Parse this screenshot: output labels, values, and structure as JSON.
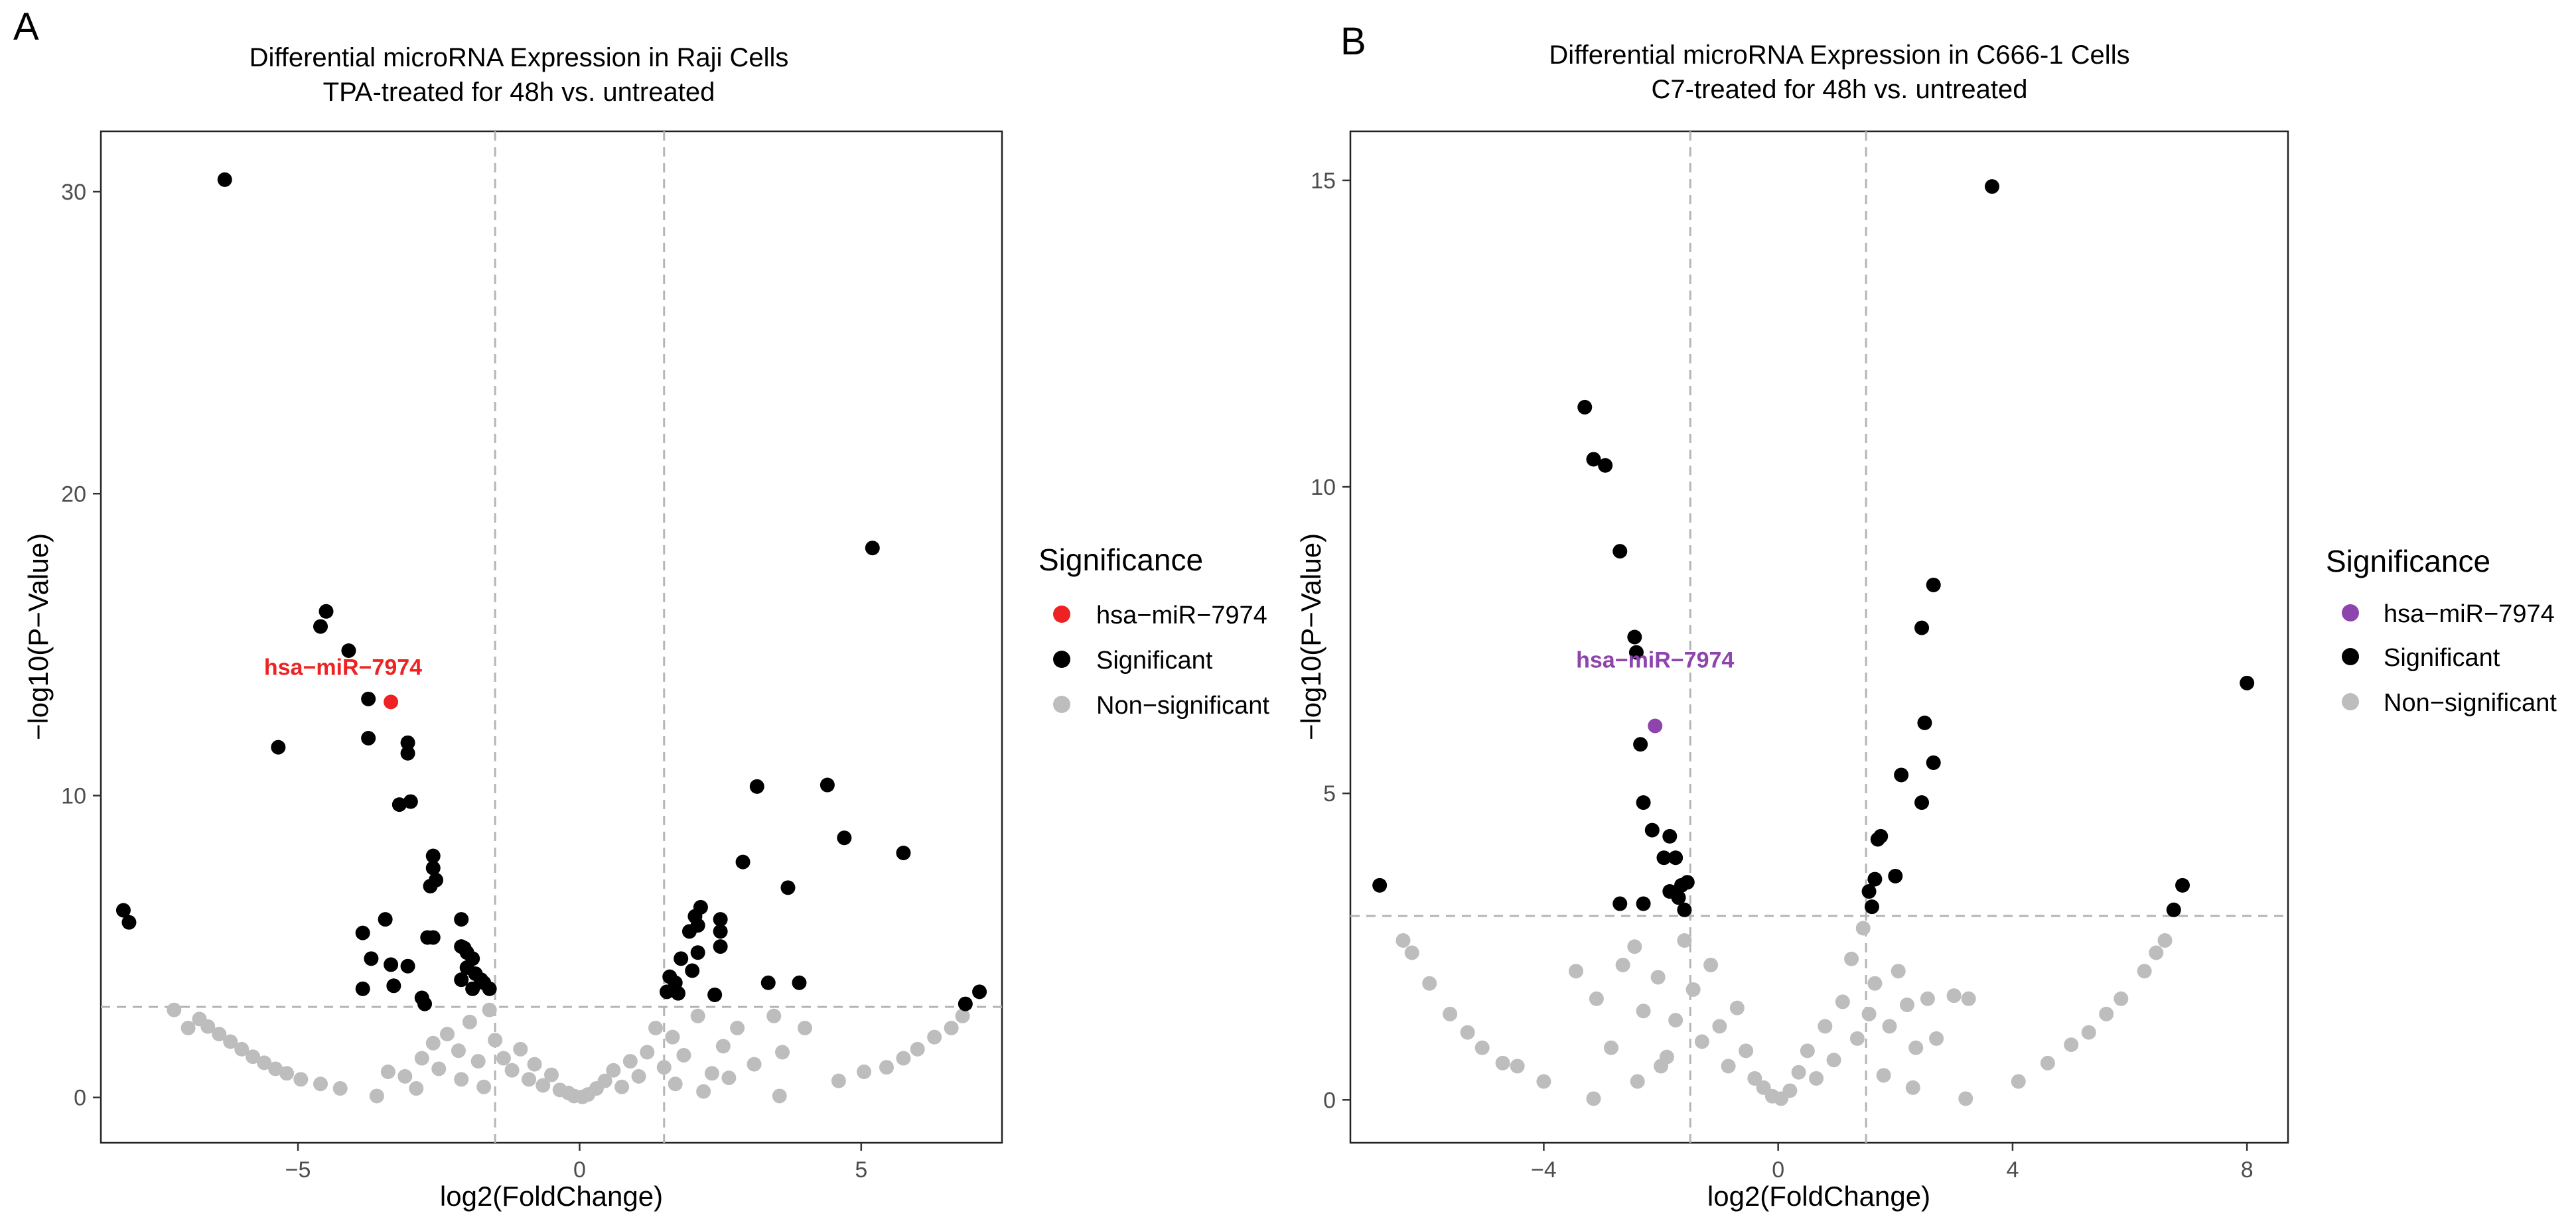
{
  "chart_data": [
    {
      "panel_label": "A",
      "type": "scatter",
      "title": "Differential microRNA Expression in Raji Cells",
      "subtitle": "TPA-treated for 48h vs. untreated",
      "xlabel": "log2(FoldChange)",
      "ylabel": "−log10(P−Value)",
      "xlim": [
        -8.5,
        7.5
      ],
      "ylim": [
        -1.5,
        32.0
      ],
      "xticks": [
        -5,
        0,
        5
      ],
      "yticks": [
        0,
        10,
        20,
        30
      ],
      "xtick_labels": [
        "−5",
        "0",
        "5"
      ],
      "ytick_labels": [
        "0",
        "10",
        "20",
        "30"
      ],
      "x_thresholds": [
        -1.5,
        1.5
      ],
      "y_threshold": 3.0,
      "grid": false,
      "legend": {
        "title": "Significance",
        "position": "right",
        "entries": [
          {
            "label": "hsa−miR−7974",
            "color": "#ee2222"
          },
          {
            "label": "Significant",
            "color": "#000000"
          },
          {
            "label": "Non−significant",
            "color": "#bdbdbd"
          }
        ]
      },
      "annotation": {
        "text": "hsa−miR−7974",
        "x": -4.2,
        "y": 14.0,
        "color": "#ee2222"
      },
      "highlight": [
        {
          "x": -3.35,
          "y": 13.1
        }
      ],
      "significant": [
        {
          "x": -6.3,
          "y": 30.4
        },
        {
          "x": 5.2,
          "y": 18.2
        },
        {
          "x": -4.5,
          "y": 16.1
        },
        {
          "x": -4.6,
          "y": 15.6
        },
        {
          "x": -4.1,
          "y": 14.8
        },
        {
          "x": -3.75,
          "y": 13.2
        },
        {
          "x": -3.75,
          "y": 11.9
        },
        {
          "x": -3.05,
          "y": 11.75
        },
        {
          "x": -3.05,
          "y": 11.4
        },
        {
          "x": -5.35,
          "y": 11.6
        },
        {
          "x": -3.2,
          "y": 9.7
        },
        {
          "x": -3.0,
          "y": 9.8
        },
        {
          "x": -2.6,
          "y": 8.0
        },
        {
          "x": -2.6,
          "y": 7.6
        },
        {
          "x": -2.65,
          "y": 7.0
        },
        {
          "x": -2.55,
          "y": 7.2
        },
        {
          "x": -8.1,
          "y": 6.2
        },
        {
          "x": -8.0,
          "y": 5.8
        },
        {
          "x": -3.45,
          "y": 5.9
        },
        {
          "x": -3.85,
          "y": 5.45
        },
        {
          "x": -2.7,
          "y": 5.3
        },
        {
          "x": -2.6,
          "y": 5.3
        },
        {
          "x": -2.1,
          "y": 5.9
        },
        {
          "x": -3.7,
          "y": 4.6
        },
        {
          "x": -3.35,
          "y": 4.4
        },
        {
          "x": -3.05,
          "y": 4.35
        },
        {
          "x": -3.85,
          "y": 3.6
        },
        {
          "x": -3.3,
          "y": 3.7
        },
        {
          "x": -2.8,
          "y": 3.3
        },
        {
          "x": -2.75,
          "y": 3.1
        },
        {
          "x": -2.1,
          "y": 5.0
        },
        {
          "x": -2.0,
          "y": 4.8
        },
        {
          "x": -1.9,
          "y": 4.6
        },
        {
          "x": -2.0,
          "y": 4.3
        },
        {
          "x": -1.85,
          "y": 4.1
        },
        {
          "x": -2.1,
          "y": 3.9
        },
        {
          "x": -1.7,
          "y": 3.8
        },
        {
          "x": -1.9,
          "y": 3.6
        },
        {
          "x": -1.6,
          "y": 3.6
        },
        {
          "x": -1.75,
          "y": 3.9
        },
        {
          "x": -2.05,
          "y": 4.95
        },
        {
          "x": 3.15,
          "y": 10.3
        },
        {
          "x": 4.4,
          "y": 10.35
        },
        {
          "x": 4.7,
          "y": 8.6
        },
        {
          "x": 5.75,
          "y": 8.1
        },
        {
          "x": 2.9,
          "y": 7.8
        },
        {
          "x": 3.7,
          "y": 6.95
        },
        {
          "x": 2.15,
          "y": 6.3
        },
        {
          "x": 2.05,
          "y": 6.0
        },
        {
          "x": 2.1,
          "y": 5.7
        },
        {
          "x": 1.95,
          "y": 5.5
        },
        {
          "x": 2.5,
          "y": 5.9
        },
        {
          "x": 2.5,
          "y": 5.5
        },
        {
          "x": 2.5,
          "y": 5.0
        },
        {
          "x": 2.1,
          "y": 4.8
        },
        {
          "x": 1.8,
          "y": 4.6
        },
        {
          "x": 2.0,
          "y": 4.2
        },
        {
          "x": 1.6,
          "y": 4.0
        },
        {
          "x": 1.7,
          "y": 3.8
        },
        {
          "x": 1.55,
          "y": 3.5
        },
        {
          "x": 1.75,
          "y": 3.45
        },
        {
          "x": 3.35,
          "y": 3.8
        },
        {
          "x": 3.9,
          "y": 3.8
        },
        {
          "x": 2.4,
          "y": 3.4
        },
        {
          "x": 6.85,
          "y": 3.1
        },
        {
          "x": 7.1,
          "y": 3.5
        }
      ],
      "non_significant": [
        {
          "x": -7.2,
          "y": 2.9
        },
        {
          "x": -6.95,
          "y": 2.3
        },
        {
          "x": -6.75,
          "y": 2.6
        },
        {
          "x": -6.6,
          "y": 2.35
        },
        {
          "x": -6.4,
          "y": 2.1
        },
        {
          "x": -6.2,
          "y": 1.85
        },
        {
          "x": -6.0,
          "y": 1.6
        },
        {
          "x": -5.8,
          "y": 1.35
        },
        {
          "x": -5.6,
          "y": 1.15
        },
        {
          "x": -5.4,
          "y": 0.95
        },
        {
          "x": -5.2,
          "y": 0.8
        },
        {
          "x": -4.95,
          "y": 0.6
        },
        {
          "x": -4.6,
          "y": 0.45
        },
        {
          "x": -4.25,
          "y": 0.3
        },
        {
          "x": -3.6,
          "y": 0.05
        },
        {
          "x": -3.4,
          "y": 0.85
        },
        {
          "x": -3.1,
          "y": 0.7
        },
        {
          "x": -2.8,
          "y": 1.3
        },
        {
          "x": -2.6,
          "y": 1.8
        },
        {
          "x": -2.5,
          "y": 0.95
        },
        {
          "x": -2.35,
          "y": 2.1
        },
        {
          "x": -2.15,
          "y": 1.55
        },
        {
          "x": -1.95,
          "y": 2.5
        },
        {
          "x": -1.8,
          "y": 1.2
        },
        {
          "x": -1.6,
          "y": 2.9
        },
        {
          "x": -1.5,
          "y": 1.9
        },
        {
          "x": -1.35,
          "y": 1.3
        },
        {
          "x": -1.2,
          "y": 0.9
        },
        {
          "x": -1.05,
          "y": 1.6
        },
        {
          "x": -0.9,
          "y": 0.6
        },
        {
          "x": -0.8,
          "y": 1.1
        },
        {
          "x": -0.65,
          "y": 0.4
        },
        {
          "x": -0.5,
          "y": 0.75
        },
        {
          "x": -0.35,
          "y": 0.25
        },
        {
          "x": -0.2,
          "y": 0.15
        },
        {
          "x": -0.1,
          "y": 0.05
        },
        {
          "x": 0.05,
          "y": 0.02
        },
        {
          "x": 0.15,
          "y": 0.1
        },
        {
          "x": 0.3,
          "y": 0.3
        },
        {
          "x": 0.45,
          "y": 0.55
        },
        {
          "x": 0.6,
          "y": 0.9
        },
        {
          "x": 0.75,
          "y": 0.35
        },
        {
          "x": 0.9,
          "y": 1.2
        },
        {
          "x": 1.05,
          "y": 0.7
        },
        {
          "x": 1.2,
          "y": 1.5
        },
        {
          "x": 1.35,
          "y": 2.3
        },
        {
          "x": 1.5,
          "y": 1.0
        },
        {
          "x": 1.65,
          "y": 2.0
        },
        {
          "x": 1.85,
          "y": 1.4
        },
        {
          "x": 2.1,
          "y": 2.7
        },
        {
          "x": 2.35,
          "y": 0.8
        },
        {
          "x": 2.55,
          "y": 1.7
        },
        {
          "x": 2.8,
          "y": 2.3
        },
        {
          "x": 3.1,
          "y": 1.1
        },
        {
          "x": 3.45,
          "y": 2.7
        },
        {
          "x": 3.6,
          "y": 1.5
        },
        {
          "x": 3.55,
          "y": 0.05
        },
        {
          "x": 4.0,
          "y": 2.3
        },
        {
          "x": 4.6,
          "y": 0.55
        },
        {
          "x": 5.05,
          "y": 0.85
        },
        {
          "x": 5.45,
          "y": 1.0
        },
        {
          "x": 5.75,
          "y": 1.3
        },
        {
          "x": 6.0,
          "y": 1.6
        },
        {
          "x": 6.3,
          "y": 2.0
        },
        {
          "x": 6.6,
          "y": 2.3
        },
        {
          "x": 6.8,
          "y": 2.7
        },
        {
          "x": -2.9,
          "y": 0.3
        },
        {
          "x": -2.1,
          "y": 0.6
        },
        {
          "x": -1.7,
          "y": 0.35
        },
        {
          "x": 1.7,
          "y": 0.45
        },
        {
          "x": 2.2,
          "y": 0.2
        },
        {
          "x": 2.65,
          "y": 0.65
        }
      ]
    },
    {
      "panel_label": "B",
      "type": "scatter",
      "title": "Differential microRNA Expression in C666-1 Cells",
      "subtitle": "C7-treated for 48h vs. untreated",
      "xlabel": "log2(FoldChange)",
      "ylabel": "−log10(P−Value)",
      "xlim": [
        -7.3,
        8.7
      ],
      "ylim": [
        -0.7,
        15.8
      ],
      "xticks": [
        -4,
        0,
        4,
        8
      ],
      "yticks": [
        0,
        5,
        10,
        15
      ],
      "xtick_labels": [
        "−4",
        "0",
        "4",
        "8"
      ],
      "ytick_labels": [
        "0",
        "5",
        "10",
        "15"
      ],
      "x_thresholds": [
        -1.5,
        1.5
      ],
      "y_threshold": 3.0,
      "grid": false,
      "legend": {
        "title": "Significance",
        "position": "right",
        "entries": [
          {
            "label": "hsa−miR−7974",
            "color": "#8e44ad"
          },
          {
            "label": "Significant",
            "color": "#000000"
          },
          {
            "label": "Non−significant",
            "color": "#bdbdbd"
          }
        ]
      },
      "annotation": {
        "text": "hsa−miR−7974",
        "x": -2.1,
        "y": 7.05,
        "color": "#8e44ad"
      },
      "highlight": [
        {
          "x": -2.1,
          "y": 6.1
        }
      ],
      "significant": [
        {
          "x": 3.65,
          "y": 14.9
        },
        {
          "x": -3.3,
          "y": 11.3
        },
        {
          "x": -3.15,
          "y": 10.45
        },
        {
          "x": -2.95,
          "y": 10.35
        },
        {
          "x": -2.7,
          "y": 8.95
        },
        {
          "x": 2.65,
          "y": 8.4
        },
        {
          "x": -2.45,
          "y": 7.55
        },
        {
          "x": -2.42,
          "y": 7.3
        },
        {
          "x": 2.45,
          "y": 7.7
        },
        {
          "x": 8.0,
          "y": 6.8
        },
        {
          "x": 2.5,
          "y": 6.15
        },
        {
          "x": -2.35,
          "y": 5.8
        },
        {
          "x": 2.65,
          "y": 5.5
        },
        {
          "x": 2.1,
          "y": 5.3
        },
        {
          "x": -2.3,
          "y": 4.85
        },
        {
          "x": 2.45,
          "y": 4.85
        },
        {
          "x": -2.15,
          "y": 4.4
        },
        {
          "x": 1.75,
          "y": 4.3
        },
        {
          "x": 1.7,
          "y": 4.25
        },
        {
          "x": -1.85,
          "y": 4.3
        },
        {
          "x": -1.75,
          "y": 3.95
        },
        {
          "x": -1.95,
          "y": 3.95
        },
        {
          "x": 1.65,
          "y": 3.6
        },
        {
          "x": 2.0,
          "y": 3.65
        },
        {
          "x": -1.65,
          "y": 3.5
        },
        {
          "x": -1.85,
          "y": 3.4
        },
        {
          "x": -1.7,
          "y": 3.3
        },
        {
          "x": -1.55,
          "y": 3.55
        },
        {
          "x": -1.6,
          "y": 3.1
        },
        {
          "x": -2.3,
          "y": 3.2
        },
        {
          "x": -2.7,
          "y": 3.2
        },
        {
          "x": 1.6,
          "y": 3.15
        },
        {
          "x": 1.55,
          "y": 3.4
        },
        {
          "x": -6.8,
          "y": 3.5
        },
        {
          "x": 6.9,
          "y": 3.5
        },
        {
          "x": 6.75,
          "y": 3.1
        }
      ],
      "non_significant": [
        {
          "x": -6.4,
          "y": 2.6
        },
        {
          "x": -6.25,
          "y": 2.4
        },
        {
          "x": -5.95,
          "y": 1.9
        },
        {
          "x": -5.6,
          "y": 1.4
        },
        {
          "x": -5.3,
          "y": 1.1
        },
        {
          "x": -5.05,
          "y": 0.85
        },
        {
          "x": -4.7,
          "y": 0.6
        },
        {
          "x": -4.45,
          "y": 0.55
        },
        {
          "x": -4.0,
          "y": 0.3
        },
        {
          "x": -3.45,
          "y": 2.1
        },
        {
          "x": -3.1,
          "y": 1.65
        },
        {
          "x": -3.15,
          "y": 0.02
        },
        {
          "x": -2.85,
          "y": 0.85
        },
        {
          "x": -2.65,
          "y": 2.2
        },
        {
          "x": -2.45,
          "y": 2.5
        },
        {
          "x": -2.3,
          "y": 1.45
        },
        {
          "x": -2.05,
          "y": 2.0
        },
        {
          "x": -1.9,
          "y": 0.7
        },
        {
          "x": -1.75,
          "y": 1.3
        },
        {
          "x": -1.6,
          "y": 2.6
        },
        {
          "x": -1.45,
          "y": 1.8
        },
        {
          "x": -1.3,
          "y": 0.95
        },
        {
          "x": -1.15,
          "y": 2.2
        },
        {
          "x": -1.0,
          "y": 1.2
        },
        {
          "x": -0.85,
          "y": 0.55
        },
        {
          "x": -0.7,
          "y": 1.5
        },
        {
          "x": -0.55,
          "y": 0.8
        },
        {
          "x": -0.4,
          "y": 0.35
        },
        {
          "x": -0.25,
          "y": 0.2
        },
        {
          "x": -0.1,
          "y": 0.06
        },
        {
          "x": 0.05,
          "y": 0.02
        },
        {
          "x": 0.2,
          "y": 0.15
        },
        {
          "x": 0.35,
          "y": 0.45
        },
        {
          "x": 0.5,
          "y": 0.8
        },
        {
          "x": 0.65,
          "y": 0.35
        },
        {
          "x": 0.8,
          "y": 1.2
        },
        {
          "x": 0.95,
          "y": 0.65
        },
        {
          "x": 1.1,
          "y": 1.6
        },
        {
          "x": 1.25,
          "y": 2.3
        },
        {
          "x": 1.35,
          "y": 1.0
        },
        {
          "x": 1.45,
          "y": 2.8
        },
        {
          "x": 1.55,
          "y": 1.4
        },
        {
          "x": 1.65,
          "y": 1.9
        },
        {
          "x": 1.9,
          "y": 1.2
        },
        {
          "x": 2.05,
          "y": 2.1
        },
        {
          "x": 2.2,
          "y": 1.55
        },
        {
          "x": 2.35,
          "y": 0.85
        },
        {
          "x": 2.55,
          "y": 1.65
        },
        {
          "x": 2.7,
          "y": 1.0
        },
        {
          "x": 3.0,
          "y": 1.7
        },
        {
          "x": 3.2,
          "y": 0.02
        },
        {
          "x": 3.25,
          "y": 1.65
        },
        {
          "x": 4.1,
          "y": 0.3
        },
        {
          "x": 4.6,
          "y": 0.6
        },
        {
          "x": 5.0,
          "y": 0.9
        },
        {
          "x": 5.3,
          "y": 1.1
        },
        {
          "x": 5.6,
          "y": 1.4
        },
        {
          "x": 5.85,
          "y": 1.65
        },
        {
          "x": 6.25,
          "y": 2.1
        },
        {
          "x": 6.45,
          "y": 2.4
        },
        {
          "x": 6.6,
          "y": 2.6
        },
        {
          "x": -2.4,
          "y": 0.3
        },
        {
          "x": -2.0,
          "y": 0.55
        },
        {
          "x": 1.8,
          "y": 0.4
        },
        {
          "x": 2.3,
          "y": 0.2
        }
      ]
    }
  ]
}
